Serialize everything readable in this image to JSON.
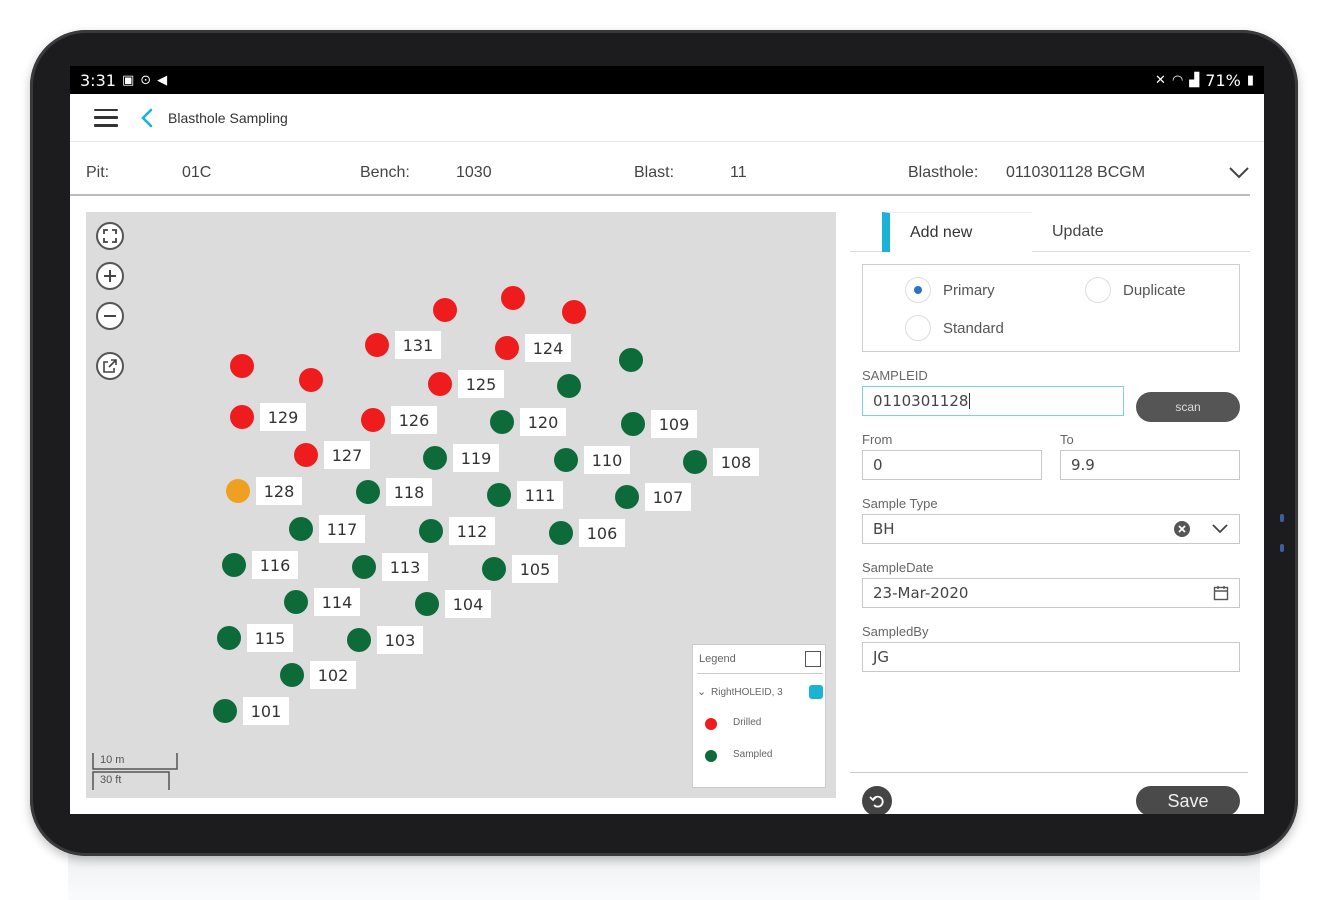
{
  "status_bar": {
    "time": "3:31",
    "battery": "71%"
  },
  "app": {
    "title": "Blasthole Sampling"
  },
  "filters": {
    "pit_label": "Pit:",
    "pit_value": "01C",
    "bench_label": "Bench:",
    "bench_value": "1030",
    "blast_label": "Blast:",
    "blast_value": "11",
    "blasthole_label": "Blasthole:",
    "blasthole_value": "0110301128 BCGM"
  },
  "map": {
    "holes": [
      {
        "label": "131",
        "status": "drilled"
      },
      {
        "label": "124",
        "status": "drilled"
      },
      {
        "label": "125",
        "status": "drilled"
      },
      {
        "label": "129",
        "status": "drilled"
      },
      {
        "label": "126",
        "status": "drilled"
      },
      {
        "label": "127",
        "status": "drilled"
      },
      {
        "label": "128",
        "status": "selected"
      },
      {
        "label": "120",
        "status": "sampled"
      },
      {
        "label": "109",
        "status": "sampled"
      },
      {
        "label": "119",
        "status": "sampled"
      },
      {
        "label": "110",
        "status": "sampled"
      },
      {
        "label": "108",
        "status": "sampled"
      },
      {
        "label": "118",
        "status": "sampled"
      },
      {
        "label": "111",
        "status": "sampled"
      },
      {
        "label": "107",
        "status": "sampled"
      },
      {
        "label": "117",
        "status": "sampled"
      },
      {
        "label": "112",
        "status": "sampled"
      },
      {
        "label": "106",
        "status": "sampled"
      },
      {
        "label": "116",
        "status": "sampled"
      },
      {
        "label": "113",
        "status": "sampled"
      },
      {
        "label": "105",
        "status": "sampled"
      },
      {
        "label": "114",
        "status": "sampled"
      },
      {
        "label": "104",
        "status": "sampled"
      },
      {
        "label": "115",
        "status": "sampled"
      },
      {
        "label": "103",
        "status": "sampled"
      },
      {
        "label": "102",
        "status": "sampled"
      },
      {
        "label": "101",
        "status": "sampled"
      }
    ],
    "colors": {
      "drilled": "#ee1c1c",
      "sampled": "#0d6b3a",
      "selected": "#f0a020"
    },
    "scale": {
      "metric": "10 m",
      "imperial": "30 ft"
    },
    "legend": {
      "title": "Legend",
      "layer": "RightHOLEID, 3",
      "items": [
        {
          "label": "Drilled"
        },
        {
          "label": "Sampled"
        }
      ]
    }
  },
  "panel": {
    "tabs": [
      {
        "label": "Add new"
      },
      {
        "label": "Update"
      }
    ],
    "radios": [
      {
        "label": "Primary",
        "checked": true
      },
      {
        "label": "Duplicate",
        "checked": false
      },
      {
        "label": "Standard",
        "checked": false
      }
    ],
    "sampleid_label": "SAMPLEID",
    "sampleid_value": "0110301128",
    "scan_label": "scan",
    "from_label": "From",
    "from_value": "0",
    "to_label": "To",
    "to_value": "9.9",
    "sample_type_label": "Sample Type",
    "sample_type_value": "BH",
    "sample_date_label": "SampleDate",
    "sample_date_value": "23-Mar-2020",
    "sampled_by_label": "SampledBy",
    "sampled_by_value": "JG",
    "save_label": "Save"
  }
}
